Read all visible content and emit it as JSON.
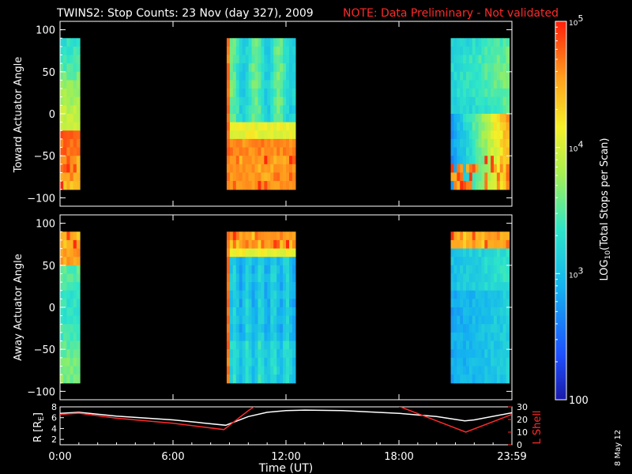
{
  "header": {
    "title": "TWINS2: Stop Counts: 23 Nov (day 327), 2009",
    "note": "NOTE: Data Preliminary - Not validated"
  },
  "colors": {
    "background": "#000000",
    "axis": "#ffffff",
    "note": "#ff2a2a",
    "r_line": "#ffffff",
    "lshell_line": "#ff2a2a"
  },
  "footer": {
    "date_stamp": "8 May 12"
  },
  "chart_data": [
    {
      "type": "heatmap",
      "id": "toward",
      "ylabel": "Toward Actuator Angle",
      "ylim": [
        -110,
        110
      ],
      "xlim": [
        0,
        24
      ],
      "yticks": [
        100,
        50,
        0,
        -50,
        -100
      ],
      "data_intervals_ut": [
        [
          0.0,
          1.05
        ],
        [
          8.85,
          12.5
        ],
        [
          20.75,
          23.85
        ]
      ],
      "angle_range": [
        -90,
        90
      ],
      "scale": "log"
    },
    {
      "type": "heatmap",
      "id": "away",
      "ylabel": "Away Actuator Angle",
      "ylim": [
        -110,
        110
      ],
      "xlim": [
        0,
        24
      ],
      "yticks": [
        100,
        50,
        0,
        -50,
        -100
      ],
      "data_intervals_ut": [
        [
          0.0,
          1.05
        ],
        [
          8.85,
          12.5
        ],
        [
          20.75,
          23.85
        ]
      ],
      "angle_range": [
        -90,
        90
      ],
      "scale": "log"
    },
    {
      "type": "line",
      "id": "orbit",
      "xlabel": "Time (UT)",
      "xticks": [
        "0:00",
        "6:00",
        "12:00",
        "18:00",
        "23:59"
      ],
      "xlim": [
        0,
        24
      ],
      "left_axis": {
        "label": "R [R",
        "label_sub": "E",
        "label_end": "]",
        "ylim": [
          1,
          8
        ],
        "ticks": [
          8,
          6,
          4,
          2
        ]
      },
      "right_axis": {
        "label": "L Shell",
        "ylim": [
          0,
          30
        ],
        "ticks": [
          30,
          20,
          10,
          0
        ]
      },
      "series": [
        {
          "axis": "left",
          "x": [
            0,
            1,
            3,
            6,
            8.8,
            10,
            11,
            12,
            13,
            15,
            18,
            20,
            21.5,
            22,
            24
          ],
          "y": [
            6.8,
            7.0,
            6.3,
            5.6,
            4.6,
            6.2,
            7.0,
            7.3,
            7.4,
            7.3,
            6.8,
            6.2,
            5.4,
            5.6,
            6.9
          ]
        },
        {
          "axis": "right",
          "x": [
            0,
            1,
            3,
            6,
            8.7,
            10.0,
            10.5
          ],
          "y": [
            24,
            25,
            21,
            17,
            12,
            27,
            32
          ]
        },
        {
          "axis": "right",
          "x": [
            17.9,
            21.55,
            24
          ],
          "y": [
            31,
            10,
            24
          ]
        }
      ]
    },
    {
      "type": "colorbar",
      "label": "LOG",
      "label_sub": "10",
      "label_rest": "(Total Stops per Scan)",
      "range": [
        100,
        100000
      ],
      "ticks": [
        "10",
        "5",
        "10",
        "4",
        "10",
        "3",
        "100"
      ],
      "tick_values": [
        100000,
        10000,
        1000,
        100
      ]
    }
  ]
}
